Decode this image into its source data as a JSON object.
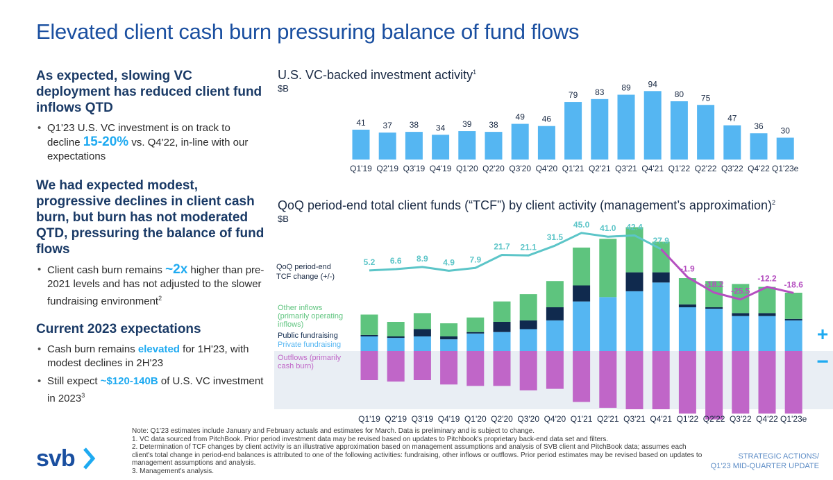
{
  "title": "Elevated client cash burn pressuring balance of fund flows",
  "left": {
    "section1_heading": "As expected, slowing VC deployment has reduced client fund inflows QTD",
    "section1_bullet": {
      "pre": "Q1'23 U.S. VC investment is on track to decline ",
      "highlight": "15-20%",
      "post": " vs. Q4'22, in-line with our expectations"
    },
    "section2_heading": "We had expected modest, progressive declines in client cash burn, but burn has not moderated QTD, pressuring the balance of fund flows",
    "section2_bullet": {
      "pre": "Client cash burn remains ",
      "highlight": "~2x",
      "post": " higher than pre-2021 levels and has not adjusted to the slower fundraising environment",
      "sup": "2"
    },
    "section3_heading": "Current 2023 expectations",
    "section3_bullet1": {
      "pre": "Cash burn remains ",
      "highlight": "elevated",
      "post": " for 1H'23, with modest declines in 2H'23"
    },
    "section3_bullet2": {
      "pre": "Still expect ",
      "highlight": "~$120-140B",
      "post": " of U.S. VC investment in 2023",
      "sup": "3"
    }
  },
  "chart_data": [
    {
      "type": "bar",
      "title": "U.S. VC-backed investment activity",
      "title_sup": "1",
      "unit": "$B",
      "categories": [
        "Q1'19",
        "Q2'19",
        "Q3'19",
        "Q4'19",
        "Q1'20",
        "Q2'20",
        "Q3'20",
        "Q4'20",
        "Q1'21",
        "Q2'21",
        "Q3'21",
        "Q4'21",
        "Q1'22",
        "Q2'22",
        "Q3'22",
        "Q4'22",
        "Q1'23e"
      ],
      "values": [
        41,
        37,
        38,
        34,
        39,
        38,
        49,
        46,
        79,
        83,
        89,
        94,
        80,
        75,
        47,
        36,
        30
      ],
      "color": "#55b6f2"
    },
    {
      "type": "bar",
      "title": "QoQ period-end total client funds (“TCF”) by client activity (management’s approximation)",
      "title_sup": "2",
      "unit": "$B",
      "categories": [
        "Q1'19",
        "Q2'19",
        "Q3'19",
        "Q4'19",
        "Q1'20",
        "Q2'20",
        "Q3'20",
        "Q4'20",
        "Q1'21",
        "Q2'21",
        "Q3'21",
        "Q4'21",
        "Q1'22",
        "Q2'22",
        "Q3'22",
        "Q4'22",
        "Q1'23e"
      ],
      "tcf_change_label": "QoQ period-end TCF change (+/-)",
      "tcf_change": [
        5.2,
        6.6,
        8.9,
        4.9,
        7.9,
        21.7,
        21.1,
        31.5,
        45.0,
        41.0,
        42.4,
        27.9,
        -1.9,
        -18.2,
        -25.5,
        -12.2,
        -18.6
      ],
      "tcf_change_labels": [
        "5.2",
        "6.6",
        "8.9",
        "4.9",
        "7.9",
        "21.7",
        "21.1",
        "31.5",
        "45.0",
        "41.0",
        "42.4",
        "27.9",
        "-1.9",
        "-18.2",
        "-25.5",
        "-12.2",
        "-18.6"
      ],
      "series": [
        {
          "name": "Private fundraising",
          "color": "#55b6f2",
          "values": [
            10,
            9,
            10,
            8,
            12,
            13,
            15,
            21,
            34,
            37,
            41,
            47,
            30,
            29,
            24,
            24,
            21
          ]
        },
        {
          "name": "Public fundraising",
          "color": "#102a4e",
          "values": [
            1,
            1,
            5,
            2,
            1,
            7,
            6,
            9,
            11,
            0,
            13,
            7,
            2,
            1,
            2,
            2,
            1
          ]
        },
        {
          "name": "Other inflows (primarily operating inflows)",
          "name_lines": [
            "Other inflows",
            "(primarily operating",
            "inflows)"
          ],
          "color": "#5ec47e",
          "values": [
            14,
            10,
            11,
            9,
            10,
            14,
            18,
            18,
            26,
            40,
            31,
            21,
            18,
            18,
            20,
            18,
            18
          ]
        },
        {
          "name": "Outflows (primarily cash burn)",
          "name_lines": [
            "Outflows (primarily",
            "cash burn)"
          ],
          "color": "#c066c8",
          "values": [
            -20,
            -21,
            -20,
            -23,
            -24,
            -24,
            -27,
            -26,
            -35,
            -39,
            -40,
            -40,
            -43,
            -47,
            -43,
            -43,
            -43
          ]
        }
      ],
      "plus_sign": "+",
      "minus_sign": "−"
    }
  ],
  "notes": [
    "Note: Q1'23 estimates include January and February actuals and estimates for March. Data is preliminary and is subject to change.",
    "1. VC data sourced from PitchBook. Prior period investment data may be revised based on updates to Pitchbook's proprietary back-end data set and filters.",
    "2. Determination of TCF changes by client activity is an illustrative approximation based on management assumptions and analysis of SVB client and PitchBook data; assumes each client's total change in period-end balances is attributed to one of the following activities: fundraising, other inflows or outflows. Prior period estimates may be revised based on updates to management assumptions and analysis.",
    "3. Management's analysis."
  ],
  "logo": "svb",
  "footer": [
    "STRATEGIC ACTIONS/",
    "Q1'23 MID-QUARTER UPDATE"
  ],
  "colors": {
    "brand_blue": "#1a4fa0",
    "accent": "#1eaaf1",
    "tcf_pos": "#5cc5c8",
    "tcf_neg": "#b54fc0"
  }
}
